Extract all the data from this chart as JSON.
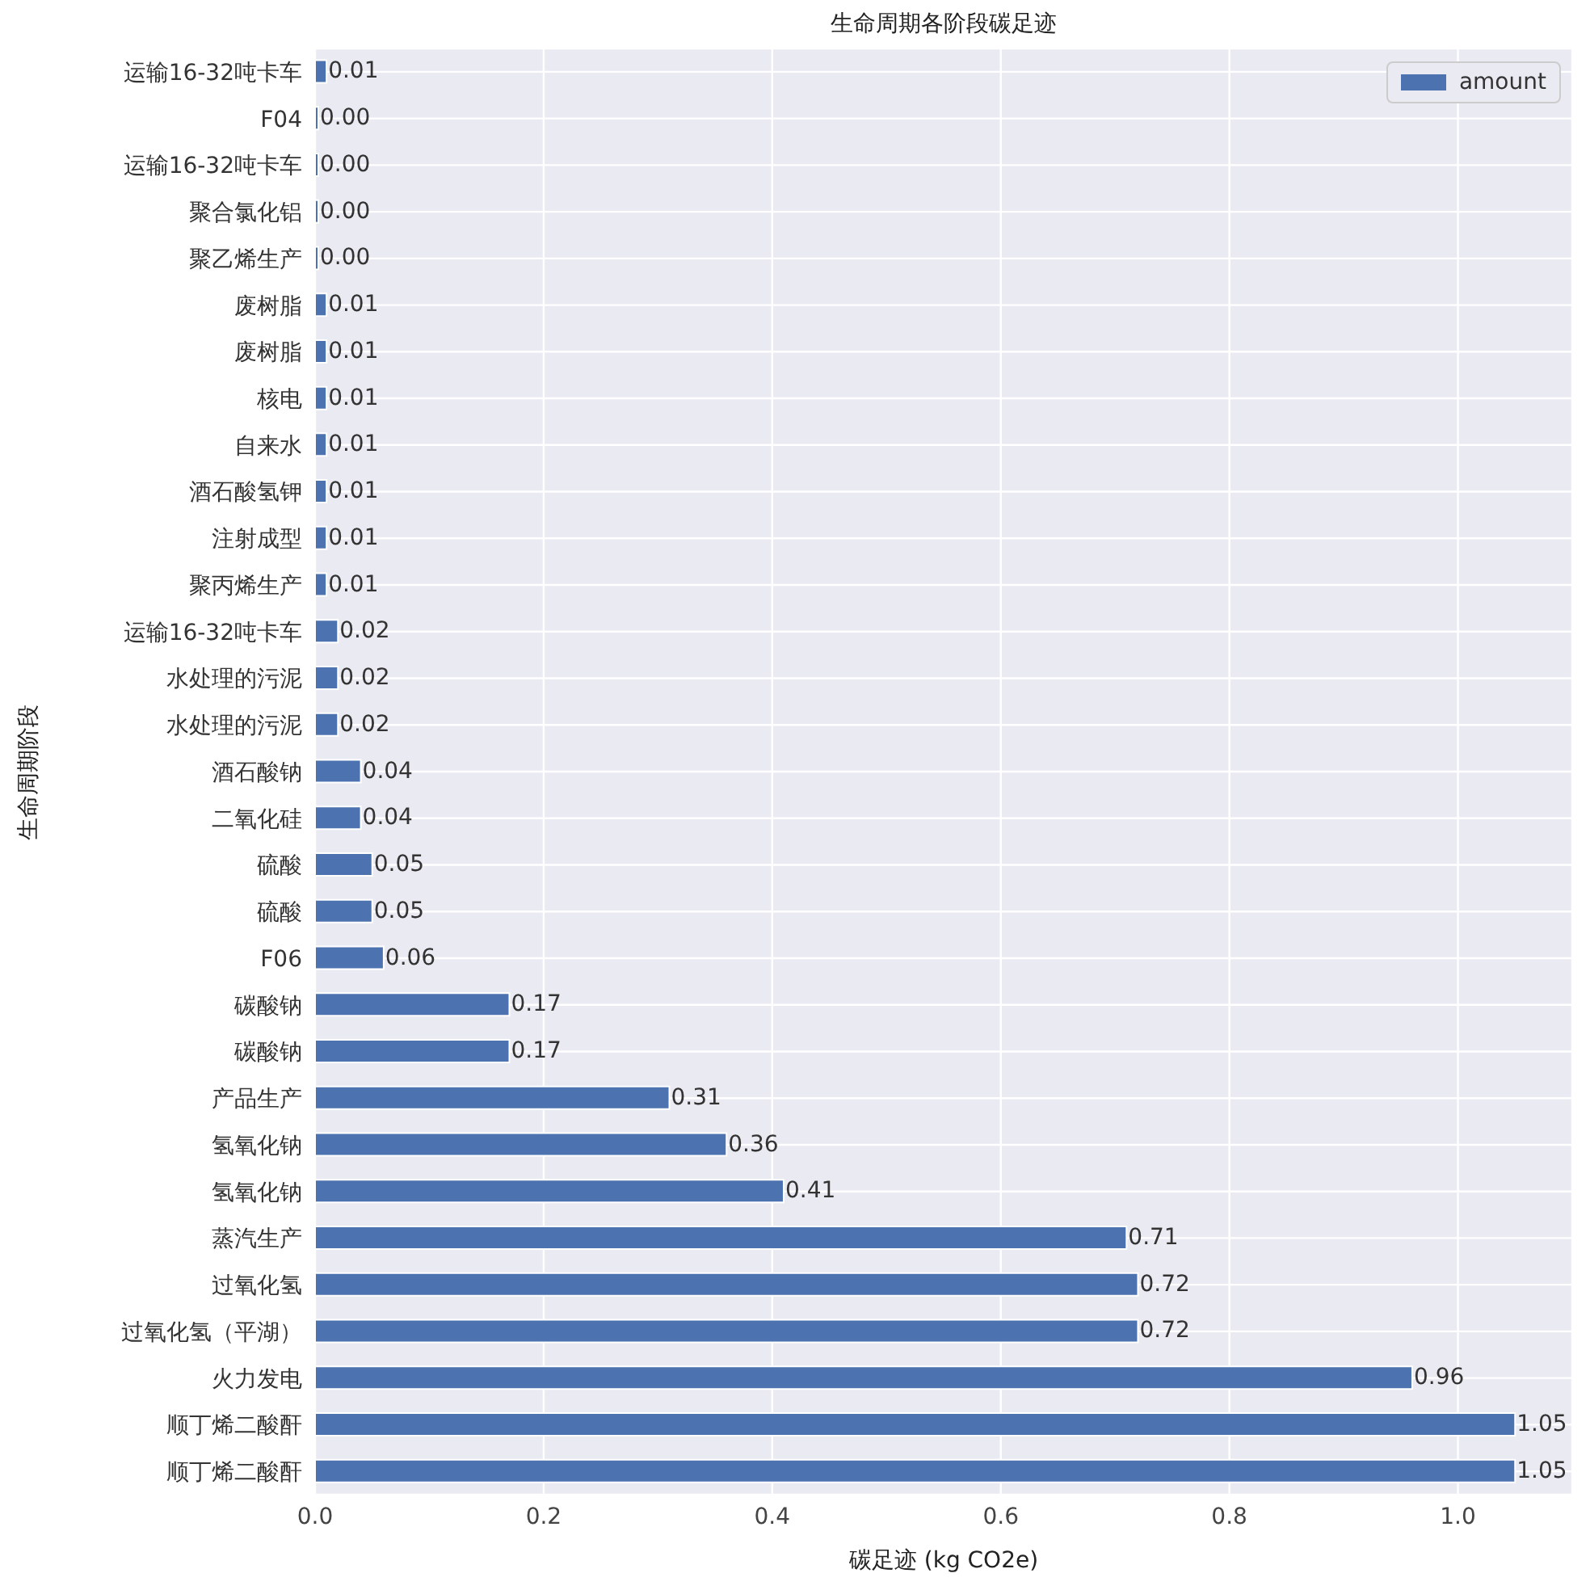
{
  "chart_data": {
    "type": "bar",
    "orientation": "horizontal",
    "title": "生命周期各阶段碳足迹",
    "xlabel": "碳足迹 (kg CO2e)",
    "ylabel": "生命周期阶段",
    "categories": [
      "运输16-32吨卡车",
      "F04",
      "运输16-32吨卡车",
      "聚合氯化铝",
      "聚乙烯生产",
      "废树脂",
      "废树脂",
      "核电",
      "自来水",
      "酒石酸氢钾",
      "注射成型",
      "聚丙烯生产",
      "运输16-32吨卡车",
      "水处理的污泥",
      "水处理的污泥",
      "酒石酸钠",
      "二氧化硅",
      "硫酸",
      "硫酸",
      "F06",
      "碳酸钠",
      "碳酸钠",
      "产品生产",
      "氢氧化钠",
      "氢氧化钠",
      "蒸汽生产",
      "过氧化氢",
      "过氧化氢（平湖）",
      "火力发电",
      "顺丁烯二酸酐",
      "顺丁烯二酸酐"
    ],
    "series": [
      {
        "name": "amount",
        "color": "#4c72b0",
        "values": [
          0.01,
          0,
          0,
          0,
          0,
          0.01,
          0.01,
          0.01,
          0.01,
          0.01,
          0.01,
          0.01,
          0.02,
          0.02,
          0.02,
          0.04,
          0.04,
          0.05,
          0.05,
          0.06,
          0.17,
          0.17,
          0.31,
          0.36,
          0.41,
          0.71,
          0.72,
          0.72,
          0.96,
          1.05,
          1.05
        ],
        "value_labels": [
          "0.01",
          "0.00",
          "0.00",
          "0.00",
          "0.00",
          "0.01",
          "0.01",
          "0.01",
          "0.01",
          "0.01",
          "0.01",
          "0.01",
          "0.02",
          "0.02",
          "0.02",
          "0.04",
          "0.04",
          "0.05",
          "0.05",
          "0.06",
          "0.17",
          "0.17",
          "0.31",
          "0.36",
          "0.41",
          "0.71",
          "0.72",
          "0.72",
          "0.96",
          "1.05",
          "1.05"
        ]
      }
    ],
    "xlim": [
      0,
      1.1
    ],
    "xticks": [
      {
        "value": 0,
        "label": "0.0"
      },
      {
        "value": 0.2,
        "label": "0.2"
      },
      {
        "value": 0.4,
        "label": "0.4"
      },
      {
        "value": 0.6,
        "label": "0.6"
      },
      {
        "value": 0.8,
        "label": "0.8"
      },
      {
        "value": 1,
        "label": "1.0"
      }
    ],
    "grid": true,
    "legend": "top right"
  }
}
